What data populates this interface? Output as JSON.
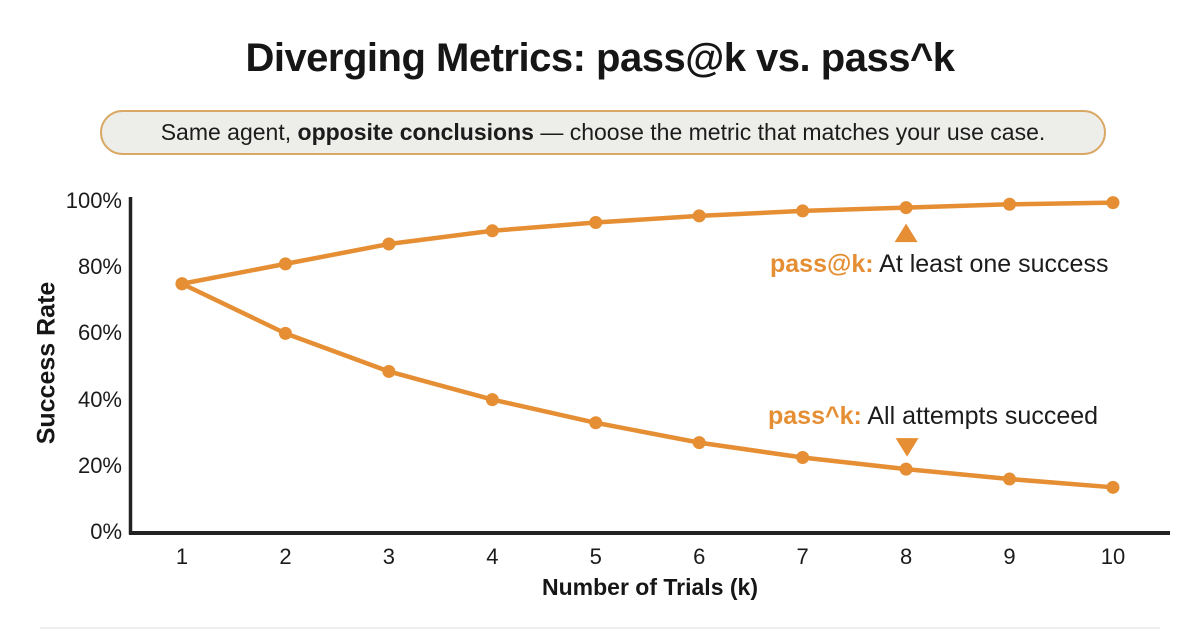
{
  "title": "Diverging Metrics: pass@k vs. pass^k",
  "subtitle": {
    "prefix": "Same agent, ",
    "bold": "opposite conclusions",
    "suffix": " — choose the metric that matches your use case."
  },
  "chart_data": {
    "type": "line",
    "x": [
      1,
      2,
      3,
      4,
      5,
      6,
      7,
      8,
      9,
      10
    ],
    "series": [
      {
        "name": "pass@k",
        "values": [
          75,
          81,
          87,
          91,
          93.5,
          95.5,
          97,
          98,
          99,
          99.5
        ]
      },
      {
        "name": "pass^k",
        "values": [
          75,
          60,
          48.5,
          40,
          33,
          27,
          22.5,
          19,
          16,
          13.5
        ]
      }
    ],
    "xlabel": "Number of Trials (k)",
    "ylabel": "Success Rate",
    "xlim": [
      1,
      10
    ],
    "ylim": [
      0,
      100
    ],
    "x_ticks": [
      "1",
      "2",
      "3",
      "4",
      "5",
      "6",
      "7",
      "8",
      "9",
      "10"
    ],
    "y_ticks": [
      "100%",
      "80%",
      "60%",
      "40%",
      "20%",
      "0%"
    ],
    "grid": false,
    "legend_position": "inline-annotations",
    "line_color": "#E58E33",
    "axis_color": "#222222",
    "annotations": [
      {
        "metric": "pass@k:",
        "text": " At least one success",
        "marker": "up-triangle-icon",
        "marker_at_x": 8,
        "series": "pass@k"
      },
      {
        "metric": "pass^k:",
        "text": " All attempts succeed",
        "marker": "down-triangle-icon",
        "marker_at_x": 8,
        "series": "pass^k"
      }
    ]
  },
  "colors": {
    "accent_orange": "#E58E33",
    "title_ink": "#161616",
    "pill_border": "#D9A865",
    "pill_background": "#EDEDEA",
    "background": "#FFFFFF"
  }
}
